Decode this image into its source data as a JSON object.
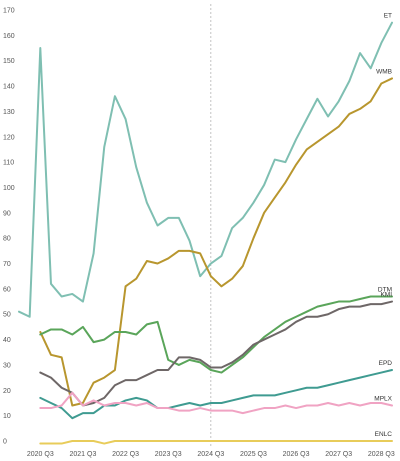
{
  "chart_data": {
    "type": "line",
    "title": "",
    "xlabel": "",
    "ylabel": "",
    "ylim": [
      0,
      170
    ],
    "y_ticks": [
      0,
      10,
      20,
      30,
      40,
      50,
      60,
      70,
      80,
      90,
      100,
      110,
      120,
      130,
      140,
      150,
      160,
      170
    ],
    "x_ticks": [
      "2020 Q3",
      "2021 Q3",
      "2022 Q3",
      "2023 Q3",
      "2024 Q3",
      "2025 Q3",
      "2026 Q3",
      "2027 Q3",
      "2028 Q3"
    ],
    "periods": [
      "2020 Q1",
      "2020 Q2",
      "2020 Q3",
      "2020 Q4",
      "2021 Q1",
      "2021 Q2",
      "2021 Q3",
      "2021 Q4",
      "2022 Q1",
      "2022 Q2",
      "2022 Q3",
      "2022 Q4",
      "2023 Q1",
      "2023 Q2",
      "2023 Q3",
      "2023 Q4",
      "2024 Q1",
      "2024 Q2",
      "2024 Q3",
      "2024 Q4",
      "2025 Q1",
      "2025 Q2",
      "2025 Q3",
      "2025 Q4",
      "2026 Q1",
      "2026 Q2",
      "2026 Q3",
      "2026 Q4",
      "2027 Q1",
      "2027 Q2",
      "2027 Q3",
      "2027 Q4",
      "2028 Q1",
      "2028 Q2",
      "2028 Q3",
      "2028 Q4"
    ],
    "divider_period": "2024 Q3",
    "grid": false,
    "legend": "inline labels at line ends",
    "series": [
      {
        "name": "ET",
        "color": "#7fbfb2",
        "values": [
          51,
          49,
          155,
          62,
          57,
          58,
          55,
          74,
          116,
          136,
          127,
          108,
          94,
          85,
          88,
          88,
          79,
          65,
          70,
          73,
          84,
          88,
          94,
          101,
          111,
          110,
          119,
          127,
          135,
          128,
          134,
          142,
          153,
          147,
          157,
          165
        ]
      },
      {
        "name": "WMB",
        "color": "#b8962e",
        "values": [
          null,
          null,
          43,
          34,
          33,
          14,
          15,
          23,
          25,
          28,
          61,
          64,
          71,
          70,
          72,
          75,
          75,
          74,
          65,
          61,
          64,
          69,
          80,
          90,
          96,
          102,
          109,
          115,
          118,
          121,
          124,
          129,
          131,
          134,
          141,
          143
        ]
      },
      {
        "name": "DTM",
        "color": "#5aa55a",
        "values": [
          null,
          null,
          42,
          44,
          44,
          42,
          45,
          39,
          40,
          43,
          43,
          42,
          46,
          47,
          32,
          30,
          32,
          31,
          28,
          27,
          30,
          33,
          37,
          41,
          44,
          47,
          49,
          51,
          53,
          54,
          55,
          55,
          56,
          57,
          57,
          57
        ]
      },
      {
        "name": "KMI",
        "color": "#6e6767",
        "values": [
          null,
          null,
          27,
          25,
          21,
          19,
          14,
          15,
          17,
          22,
          24,
          24,
          26,
          28,
          28,
          33,
          33,
          32,
          29,
          29,
          31,
          34,
          38,
          40,
          42,
          44,
          47,
          49,
          49,
          50,
          52,
          53,
          53,
          54,
          54,
          55
        ]
      },
      {
        "name": "EPD",
        "color": "#3f9b91",
        "values": [
          null,
          null,
          17,
          15,
          13,
          9,
          11,
          11,
          14,
          14,
          16,
          17,
          16,
          13,
          13,
          14,
          15,
          14,
          15,
          15,
          16,
          17,
          18,
          18,
          18,
          19,
          20,
          21,
          21,
          22,
          23,
          24,
          25,
          26,
          27,
          28
        ]
      },
      {
        "name": "MPLX",
        "color": "#f0a3c3",
        "values": [
          null,
          null,
          13,
          13,
          14,
          19,
          14,
          16,
          14,
          15,
          15,
          14,
          15,
          13,
          13,
          12,
          12,
          13,
          12,
          12,
          12,
          11,
          12,
          13,
          13,
          14,
          13,
          14,
          14,
          15,
          14,
          15,
          14,
          15,
          15,
          14
        ]
      },
      {
        "name": "ENLC",
        "color": "#e8cc5a",
        "values": [
          null,
          null,
          -1,
          -1,
          -1,
          0,
          0,
          0,
          -1,
          0,
          0,
          0,
          0,
          0,
          0,
          0,
          0,
          0,
          0,
          0,
          0,
          0,
          0,
          0,
          0,
          0,
          0,
          0,
          0,
          0,
          0,
          0,
          0,
          0,
          0,
          0
        ]
      }
    ]
  }
}
